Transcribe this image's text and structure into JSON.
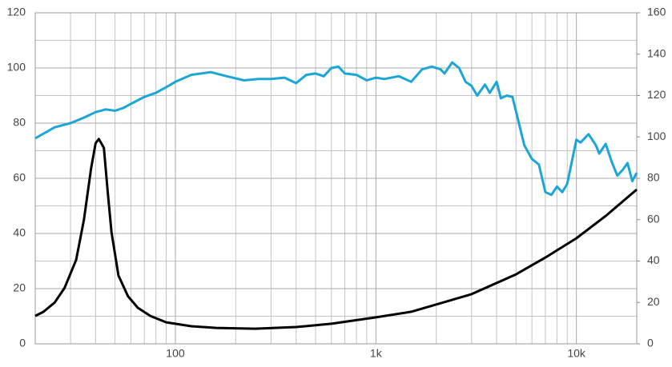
{
  "chart_data": {
    "type": "line",
    "xscale": "log",
    "xlim": [
      20,
      20000
    ],
    "xticks": [
      100,
      {
        "value": 1000,
        "label": "1k"
      },
      {
        "value": 10000,
        "label": "10k"
      }
    ],
    "xminorticks": [
      20,
      30,
      40,
      50,
      60,
      70,
      80,
      90,
      200,
      300,
      400,
      500,
      600,
      700,
      800,
      900,
      2000,
      3000,
      4000,
      5000,
      6000,
      7000,
      8000,
      9000
    ],
    "ylim": [
      0,
      120
    ],
    "yticks": [
      0,
      20,
      40,
      60,
      80,
      100,
      120
    ],
    "yminorticks": [
      10,
      30,
      50,
      70,
      90,
      110
    ],
    "y2lim": [
      0,
      160
    ],
    "y2ticks": [
      0,
      20,
      40,
      60,
      80,
      100,
      120,
      140,
      160
    ],
    "grid": true,
    "series": [
      {
        "color": "#1ba6d6",
        "x": [
          20,
          25,
          30,
          35,
          40,
          45,
          50,
          55,
          60,
          70,
          80,
          90,
          100,
          120,
          150,
          180,
          220,
          260,
          300,
          350,
          400,
          450,
          500,
          550,
          600,
          650,
          700,
          800,
          900,
          1000,
          1100,
          1300,
          1500,
          1700,
          1900,
          2100,
          2200,
          2400,
          2600,
          2800,
          3000,
          3200,
          3500,
          3700,
          4000,
          4200,
          4500,
          4800,
          5500,
          6000,
          6500,
          7000,
          7500,
          8000,
          8500,
          9000,
          10000,
          10500,
          11500,
          12500,
          13000,
          14000,
          15000,
          16000,
          17000,
          18000,
          19000,
          20000
        ],
        "values": [
          74.5,
          78.5,
          80,
          82,
          84,
          85,
          84.5,
          85.5,
          87,
          89.5,
          91,
          93,
          95,
          97.5,
          98.5,
          97,
          95.5,
          96,
          96,
          96.5,
          94.5,
          97.5,
          98,
          97,
          100,
          100.5,
          98,
          97.5,
          95.5,
          96.5,
          96,
          97,
          95,
          99.5,
          100.5,
          99.5,
          98,
          102,
          100,
          95,
          93.5,
          90,
          94,
          91,
          95,
          89,
          90,
          89.5,
          72,
          67,
          65,
          55,
          54,
          57,
          55,
          58,
          74,
          73,
          76,
          72,
          69,
          72.5,
          66,
          61,
          63,
          65.5,
          59,
          62
        ]
      },
      {
        "color": "#000000",
        "axis": "y2",
        "x": [
          20,
          22,
          25,
          28,
          32,
          35,
          38,
          40,
          41.5,
          44,
          46,
          48,
          52,
          58,
          65,
          75,
          90,
          120,
          160,
          250,
          400,
          600,
          1000,
          1500,
          2000,
          3000,
          5000,
          7000,
          10000,
          14000,
          20000
        ],
        "values": [
          13.5,
          15.5,
          20,
          27,
          40.6,
          60,
          85,
          97,
          99,
          94.7,
          73,
          54,
          33,
          23,
          17.4,
          13.5,
          10.4,
          8.5,
          7.7,
          7.3,
          8.1,
          9.7,
          12.8,
          15.5,
          19,
          24,
          33.6,
          41.7,
          51,
          61.8,
          74.6
        ]
      }
    ]
  }
}
